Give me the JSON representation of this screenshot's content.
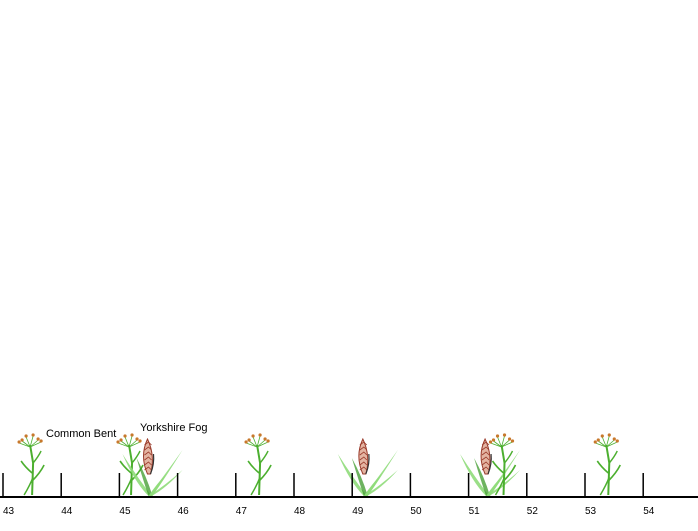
{
  "axis": {
    "ticks": [
      "43",
      "44",
      "45",
      "46",
      "47",
      "48",
      "49",
      "50",
      "51",
      "52",
      "53",
      "54"
    ]
  },
  "species_labels": {
    "common_bent": "Common Bent",
    "yorkshire_fog": "Yorkshire Fog"
  },
  "plants": [
    {
      "species": "common-bent",
      "position": 43.5
    },
    {
      "species": "common-bent",
      "position": 45.2
    },
    {
      "species": "yorkshire-fog",
      "position": 45.5
    },
    {
      "species": "common-bent",
      "position": 47.4
    },
    {
      "species": "yorkshire-fog",
      "position": 49.2
    },
    {
      "species": "yorkshire-fog",
      "position": 51.3
    },
    {
      "species": "common-bent",
      "position": 51.6
    },
    {
      "species": "common-bent",
      "position": 53.4
    }
  ],
  "colors": {
    "axis": "#000000",
    "bent_stem": "#4caf2f",
    "bent_flower": "#c8782c",
    "fog_leaf": "#8fdc7a",
    "fog_leaf_dark": "#3c9a2a",
    "fog_head": "#e3b4a2",
    "fog_head_line": "#9a3a2a"
  }
}
